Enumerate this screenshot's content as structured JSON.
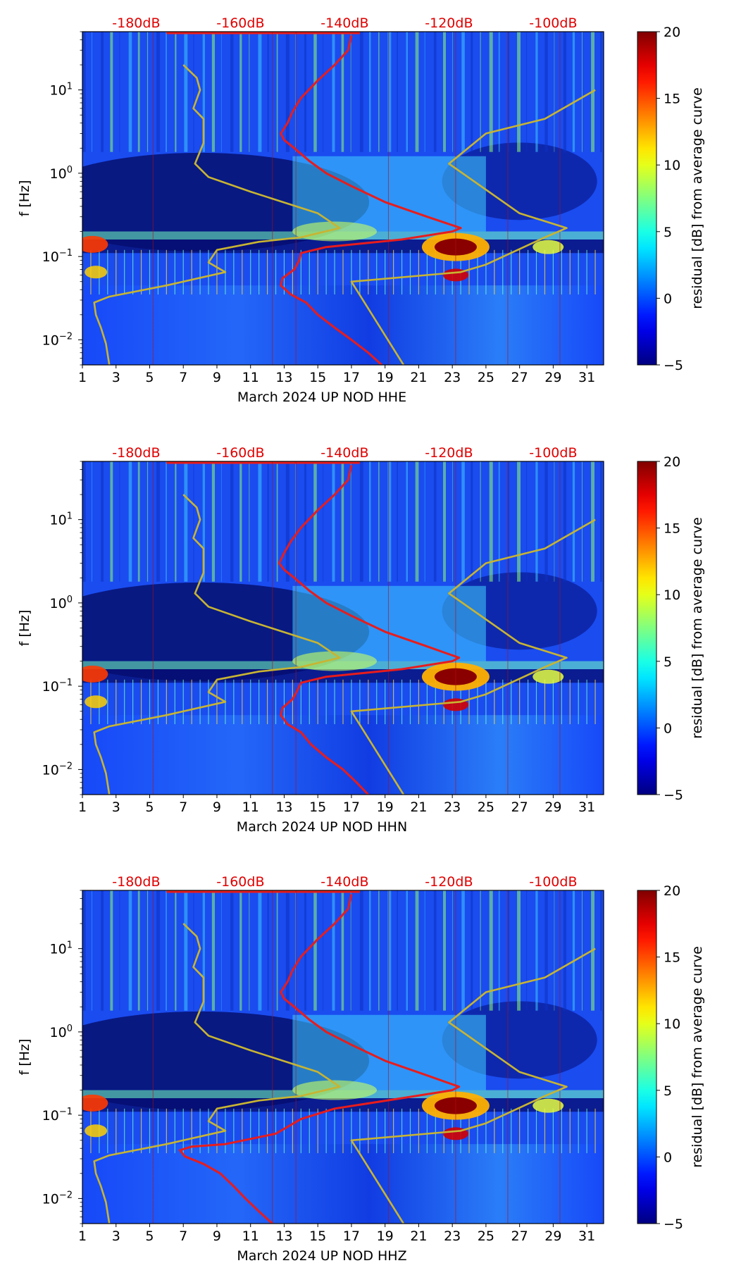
{
  "chart_data": [
    {
      "type": "heatmap",
      "xlabel": "March 2024 UP NOD  HHE",
      "ylabel": "f [Hz]",
      "xticks": [
        1,
        3,
        5,
        7,
        9,
        11,
        13,
        15,
        17,
        19,
        21,
        23,
        25,
        27,
        29,
        31
      ],
      "xlim": [
        1,
        32
      ],
      "ylim": [
        0.005,
        50
      ],
      "yticks": [
        {
          "value": 0.01,
          "base": "10",
          "exp": "−2"
        },
        {
          "value": 0.1,
          "base": "10",
          "exp": "−1"
        },
        {
          "value": 1,
          "base": "10",
          "exp": "0"
        },
        {
          "value": 10,
          "base": "10",
          "exp": "1"
        }
      ],
      "top_labels": [
        "-180dB",
        "-160dB",
        "-140dB",
        "-120dB",
        "-100dB"
      ],
      "top_label_x": [
        4.2,
        10.4,
        16.6,
        22.8,
        29.0
      ],
      "colorbar": {
        "label": "residual [dB] from average curve",
        "ticks": [
          -5,
          0,
          5,
          10,
          15,
          20
        ],
        "range": [
          -5,
          20
        ]
      },
      "series": [
        {
          "name": "model-curve",
          "color": "#c8b432",
          "x": [
            2.6,
            2.4,
            2.1,
            1.8,
            1.7,
            2.6,
            6.0,
            9.5,
            8.5,
            9.0,
            11.5,
            14.0,
            16.3,
            15.0,
            11.0,
            8.5,
            7.7,
            8.2,
            8.2,
            7.6,
            8.0,
            7.8,
            7.0
          ],
          "freq": [
            0.005,
            0.009,
            0.014,
            0.02,
            0.028,
            0.033,
            0.045,
            0.065,
            0.085,
            0.12,
            0.15,
            0.17,
            0.22,
            0.33,
            0.6,
            0.9,
            1.3,
            2.3,
            4.5,
            6.0,
            10.0,
            14.0,
            20.0
          ]
        },
        {
          "name": "model-curve-right",
          "color": "#c8b432",
          "x": [
            20.1,
            17.0,
            23.5,
            25.0,
            28.5,
            29.8,
            27.0,
            22.8,
            25.0,
            28.5,
            31.5
          ],
          "freq": [
            0.005,
            0.05,
            0.065,
            0.08,
            0.17,
            0.22,
            0.33,
            1.3,
            3.0,
            4.5,
            10.0
          ]
        },
        {
          "name": "average-curve",
          "color": "#e81c1c",
          "x": [
            18.8,
            18.0,
            17.0,
            16.0,
            15.0,
            14.3,
            13.4,
            12.8,
            12.9,
            13.6,
            13.9,
            14.0,
            15.5,
            20.0,
            23.0,
            23.5,
            21.5,
            19.0,
            17.0,
            15.5,
            14.5,
            13.6,
            13.0,
            12.8,
            13.2,
            13.5,
            14.0,
            15.0,
            16.0,
            16.8,
            17.0
          ],
          "freq": [
            0.005,
            0.007,
            0.01,
            0.014,
            0.02,
            0.028,
            0.035,
            0.045,
            0.055,
            0.07,
            0.09,
            0.11,
            0.13,
            0.16,
            0.2,
            0.22,
            0.3,
            0.45,
            0.7,
            1.0,
            1.4,
            2.0,
            2.5,
            3.0,
            4.0,
            5.5,
            8.0,
            13.0,
            20.0,
            30.0,
            45.0
          ]
        }
      ]
    },
    {
      "type": "heatmap",
      "xlabel": "March 2024 UP NOD  HHN",
      "ylabel": "f [Hz]",
      "xticks": [
        1,
        3,
        5,
        7,
        9,
        11,
        13,
        15,
        17,
        19,
        21,
        23,
        25,
        27,
        29,
        31
      ],
      "xlim": [
        1,
        32
      ],
      "ylim": [
        0.005,
        50
      ],
      "yticks": [
        {
          "value": 0.01,
          "base": "10",
          "exp": "−2"
        },
        {
          "value": 0.1,
          "base": "10",
          "exp": "−1"
        },
        {
          "value": 1,
          "base": "10",
          "exp": "0"
        },
        {
          "value": 10,
          "base": "10",
          "exp": "1"
        }
      ],
      "top_labels": [
        "-180dB",
        "-160dB",
        "-140dB",
        "-120dB",
        "-100dB"
      ],
      "top_label_x": [
        4.2,
        10.4,
        16.6,
        22.8,
        29.0
      ],
      "colorbar": {
        "label": "residual [dB] from average curve",
        "ticks": [
          -5,
          0,
          5,
          10,
          15,
          20
        ],
        "range": [
          -5,
          20
        ]
      },
      "series": [
        {
          "name": "model-curve",
          "color": "#c8b432",
          "x": [
            2.6,
            2.4,
            2.1,
            1.8,
            1.7,
            2.6,
            6.0,
            9.5,
            8.5,
            9.0,
            11.5,
            14.0,
            16.3,
            15.0,
            11.0,
            8.5,
            7.7,
            8.2,
            8.2,
            7.6,
            8.0,
            7.8,
            7.0
          ],
          "freq": [
            0.005,
            0.009,
            0.014,
            0.02,
            0.028,
            0.033,
            0.045,
            0.065,
            0.085,
            0.12,
            0.15,
            0.17,
            0.22,
            0.33,
            0.6,
            0.9,
            1.3,
            2.3,
            4.5,
            6.0,
            10.0,
            14.0,
            20.0
          ]
        },
        {
          "name": "model-curve-right",
          "color": "#c8b432",
          "x": [
            20.1,
            17.0,
            23.5,
            25.0,
            28.5,
            29.8,
            27.0,
            22.8,
            25.0,
            28.5,
            31.5
          ],
          "freq": [
            0.005,
            0.05,
            0.065,
            0.08,
            0.17,
            0.22,
            0.33,
            1.3,
            3.0,
            4.5,
            10.0
          ]
        },
        {
          "name": "average-curve",
          "color": "#e81c1c",
          "x": [
            18.0,
            17.3,
            16.5,
            15.5,
            14.6,
            14.0,
            13.2,
            12.8,
            12.9,
            13.5,
            13.8,
            14.0,
            15.5,
            20.0,
            23.0,
            23.4,
            21.5,
            19.0,
            17.0,
            15.5,
            14.5,
            13.6,
            13.0,
            12.7,
            13.0,
            13.4,
            14.0,
            15.0,
            16.0,
            16.8,
            17.0
          ],
          "freq": [
            0.005,
            0.007,
            0.01,
            0.014,
            0.02,
            0.028,
            0.035,
            0.045,
            0.055,
            0.07,
            0.09,
            0.11,
            0.13,
            0.16,
            0.2,
            0.22,
            0.3,
            0.45,
            0.7,
            1.0,
            1.4,
            2.0,
            2.5,
            3.0,
            4.0,
            5.5,
            8.0,
            13.0,
            20.0,
            30.0,
            45.0
          ]
        }
      ]
    },
    {
      "type": "heatmap",
      "xlabel": "March 2024 UP NOD  HHZ",
      "ylabel": "f [Hz]",
      "xticks": [
        1,
        3,
        5,
        7,
        9,
        11,
        13,
        15,
        17,
        19,
        21,
        23,
        25,
        27,
        29,
        31
      ],
      "xlim": [
        1,
        32
      ],
      "ylim": [
        0.005,
        50
      ],
      "yticks": [
        {
          "value": 0.01,
          "base": "10",
          "exp": "−2"
        },
        {
          "value": 0.1,
          "base": "10",
          "exp": "−1"
        },
        {
          "value": 1,
          "base": "10",
          "exp": "0"
        },
        {
          "value": 10,
          "base": "10",
          "exp": "1"
        }
      ],
      "top_labels": [
        "-180dB",
        "-160dB",
        "-140dB",
        "-120dB",
        "-100dB"
      ],
      "top_label_x": [
        4.2,
        10.4,
        16.6,
        22.8,
        29.0
      ],
      "colorbar": {
        "label": "residual [dB] from average curve",
        "ticks": [
          -5,
          0,
          5,
          10,
          15,
          20
        ],
        "range": [
          -5,
          20
        ]
      },
      "series": [
        {
          "name": "model-curve",
          "color": "#c8b432",
          "x": [
            2.6,
            2.4,
            2.1,
            1.8,
            1.7,
            2.6,
            6.0,
            9.5,
            8.5,
            9.0,
            11.5,
            14.0,
            16.3,
            15.0,
            11.0,
            8.5,
            7.7,
            8.2,
            8.2,
            7.6,
            8.0,
            7.8,
            7.0
          ],
          "freq": [
            0.005,
            0.009,
            0.014,
            0.02,
            0.028,
            0.033,
            0.045,
            0.065,
            0.085,
            0.12,
            0.15,
            0.17,
            0.22,
            0.33,
            0.6,
            0.9,
            1.3,
            2.3,
            4.5,
            6.0,
            10.0,
            14.0,
            20.0
          ]
        },
        {
          "name": "model-curve-right",
          "color": "#c8b432",
          "x": [
            20.1,
            17.0,
            23.5,
            25.0,
            28.5,
            29.8,
            27.0,
            22.8,
            25.0,
            28.5,
            31.5
          ],
          "freq": [
            0.005,
            0.05,
            0.065,
            0.08,
            0.17,
            0.22,
            0.33,
            1.3,
            3.0,
            4.5,
            10.0
          ]
        },
        {
          "name": "average-curve",
          "color": "#e81c1c",
          "x": [
            12.3,
            11.5,
            10.7,
            10.0,
            9.2,
            8.2,
            7.1,
            6.8,
            7.5,
            9.5,
            12.5,
            14.0,
            16.0,
            20.0,
            23.0,
            23.4,
            21.5,
            19.0,
            17.0,
            15.5,
            14.5,
            13.6,
            13.0,
            12.8,
            13.2,
            13.5,
            14.0,
            15.0,
            16.0,
            16.8,
            17.0
          ],
          "freq": [
            0.005,
            0.007,
            0.01,
            0.014,
            0.02,
            0.026,
            0.032,
            0.038,
            0.042,
            0.045,
            0.06,
            0.09,
            0.12,
            0.16,
            0.2,
            0.22,
            0.3,
            0.45,
            0.7,
            1.0,
            1.4,
            2.0,
            2.5,
            3.0,
            4.0,
            5.5,
            8.0,
            13.0,
            20.0,
            30.0,
            45.0
          ]
        }
      ]
    }
  ]
}
